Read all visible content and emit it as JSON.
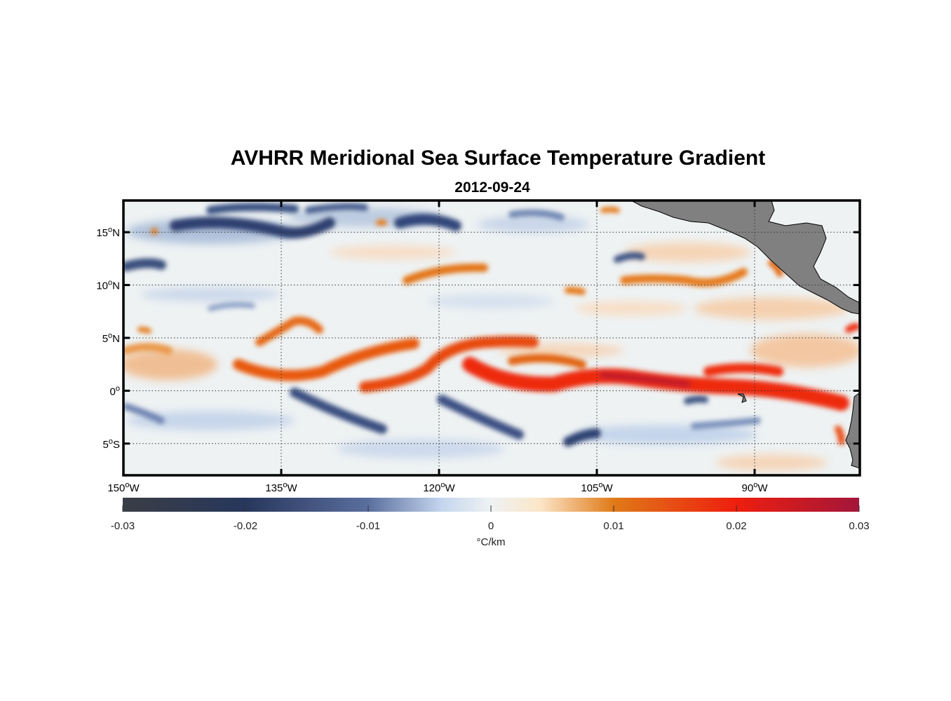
{
  "chart_data": {
    "type": "heatmap",
    "title": "AVHRR Meridional Sea Surface Temperature Gradient",
    "subtitle": "2012-09-24",
    "x_axis": {
      "range_deg_lon": [
        -150,
        -80
      ],
      "ticks": [
        {
          "value": -150,
          "deg": "150",
          "hemi": "W"
        },
        {
          "value": -135,
          "deg": "135",
          "hemi": "W"
        },
        {
          "value": -120,
          "deg": "120",
          "hemi": "W"
        },
        {
          "value": -105,
          "deg": "105",
          "hemi": "W"
        },
        {
          "value": -90,
          "deg": "90",
          "hemi": "W"
        }
      ]
    },
    "y_axis": {
      "range_deg_lat": [
        -8,
        18
      ],
      "ticks": [
        {
          "value": 15,
          "deg": "15",
          "hemi": "N"
        },
        {
          "value": 10,
          "deg": "10",
          "hemi": "N"
        },
        {
          "value": 5,
          "deg": "5",
          "hemi": "N"
        },
        {
          "value": 0,
          "deg": "0",
          "hemi": ""
        },
        {
          "value": -5,
          "deg": "5",
          "hemi": "S"
        }
      ]
    },
    "grid": true,
    "colorbar": {
      "range": [
        -0.03,
        0.03
      ],
      "ticks": [
        {
          "value": -0.03,
          "label": "-0.03"
        },
        {
          "value": -0.02,
          "label": "-0.02"
        },
        {
          "value": -0.01,
          "label": "-0.01"
        },
        {
          "value": 0,
          "label": "0"
        },
        {
          "value": 0.01,
          "label": "0.01"
        },
        {
          "value": 0.02,
          "label": "0.02"
        },
        {
          "value": 0.03,
          "label": "0.03"
        }
      ],
      "unit_label": "°C/km",
      "colormap": [
        {
          "value": -0.03,
          "color": "#3a3d45"
        },
        {
          "value": -0.02,
          "color": "#27375c"
        },
        {
          "value": -0.01,
          "color": "#5b6f9e"
        },
        {
          "value": -0.004,
          "color": "#c4d6ee"
        },
        {
          "value": 0,
          "color": "#eef2f3"
        },
        {
          "value": 0.004,
          "color": "#fbe6c8"
        },
        {
          "value": 0.01,
          "color": "#e07a18"
        },
        {
          "value": 0.02,
          "color": "#ee1e0e"
        },
        {
          "value": 0.03,
          "color": "#a3163a"
        }
      ]
    },
    "features": [
      {
        "name": "equatorial positive gradient band",
        "lon": [
          -125,
          -82
        ],
        "lat": [
          0,
          3
        ],
        "value": 0.022
      },
      {
        "name": "northern front 4-5N",
        "lon": [
          -138,
          -115
        ],
        "lat": [
          2,
          6
        ],
        "value": 0.014
      },
      {
        "name": "negative band south of equator",
        "lon": [
          -148,
          -100
        ],
        "lat": [
          -6,
          -1
        ],
        "value": -0.015
      },
      {
        "name": "negative band near 15N",
        "lon": [
          -150,
          -112
        ],
        "lat": [
          13,
          17
        ],
        "value": -0.015
      }
    ],
    "land_color": "#808080"
  }
}
